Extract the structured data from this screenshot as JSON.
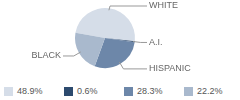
{
  "chart_data": {
    "type": "pie",
    "categories": [
      "WHITE",
      "A.I.",
      "HISPANIC",
      "BLACK"
    ],
    "values": [
      48.9,
      0.6,
      28.3,
      22.2
    ],
    "value_labels": [
      "48.9%",
      "0.6%",
      "28.3%",
      "22.2%"
    ],
    "colors": [
      "#d5dde8",
      "#2c4a6e",
      "#6d87a9",
      "#a9b9cd"
    ],
    "legend": "bottom"
  }
}
